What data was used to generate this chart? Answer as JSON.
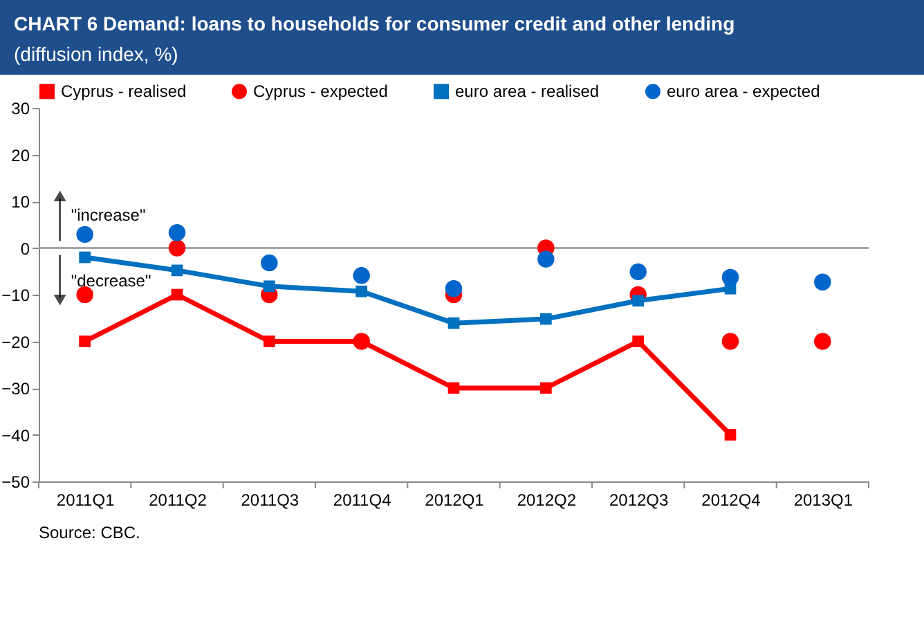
{
  "chart_data": {
    "type": "line",
    "title": "CHART 6 Demand: loans to households for consumer credit and other lending",
    "subtitle": "(diffusion index, %)",
    "categories": [
      "2011Q1",
      "2011Q2",
      "2011Q3",
      "2011Q4",
      "2012Q1",
      "2012Q2",
      "2012Q3",
      "2012Q4",
      "2013Q1"
    ],
    "series": [
      {
        "name": "Cyprus - realised",
        "marker": "square",
        "color": "#ff0000",
        "values": [
          -20,
          -10,
          -20,
          -20,
          -30,
          -30,
          -20,
          -40,
          null
        ]
      },
      {
        "name": "Cyprus - expected",
        "type": "scatter",
        "marker": "circle",
        "color": "#ff0000",
        "values": [
          -10,
          0,
          -10,
          -20,
          -10,
          0,
          -10,
          -20,
          -20
        ]
      },
      {
        "name": "euro area - realised",
        "marker": "square",
        "color": "#0070c0",
        "values": [
          -2,
          -4.8,
          -8.2,
          -9.3,
          -16.1,
          -15.2,
          -11.3,
          -8.7,
          null
        ]
      },
      {
        "name": "euro area - expected",
        "type": "scatter",
        "marker": "circle",
        "color": "#0066cc",
        "values": [
          2.9,
          3.3,
          -3.2,
          -5.9,
          -8.7,
          -2.4,
          -5.1,
          -6.3,
          -7.3
        ]
      }
    ],
    "ylim": [
      -50,
      30
    ],
    "yticks": [
      -50,
      -40,
      -30,
      -20,
      -10,
      0,
      10,
      20,
      30
    ],
    "ref_lines": [
      {
        "axis": "y",
        "value": 0,
        "color": "#a6a6a6"
      }
    ],
    "annotations": [
      "\"increase\"",
      "\"decrease\"",
      "Source: CBC."
    ],
    "legend": "top",
    "grid": false
  }
}
